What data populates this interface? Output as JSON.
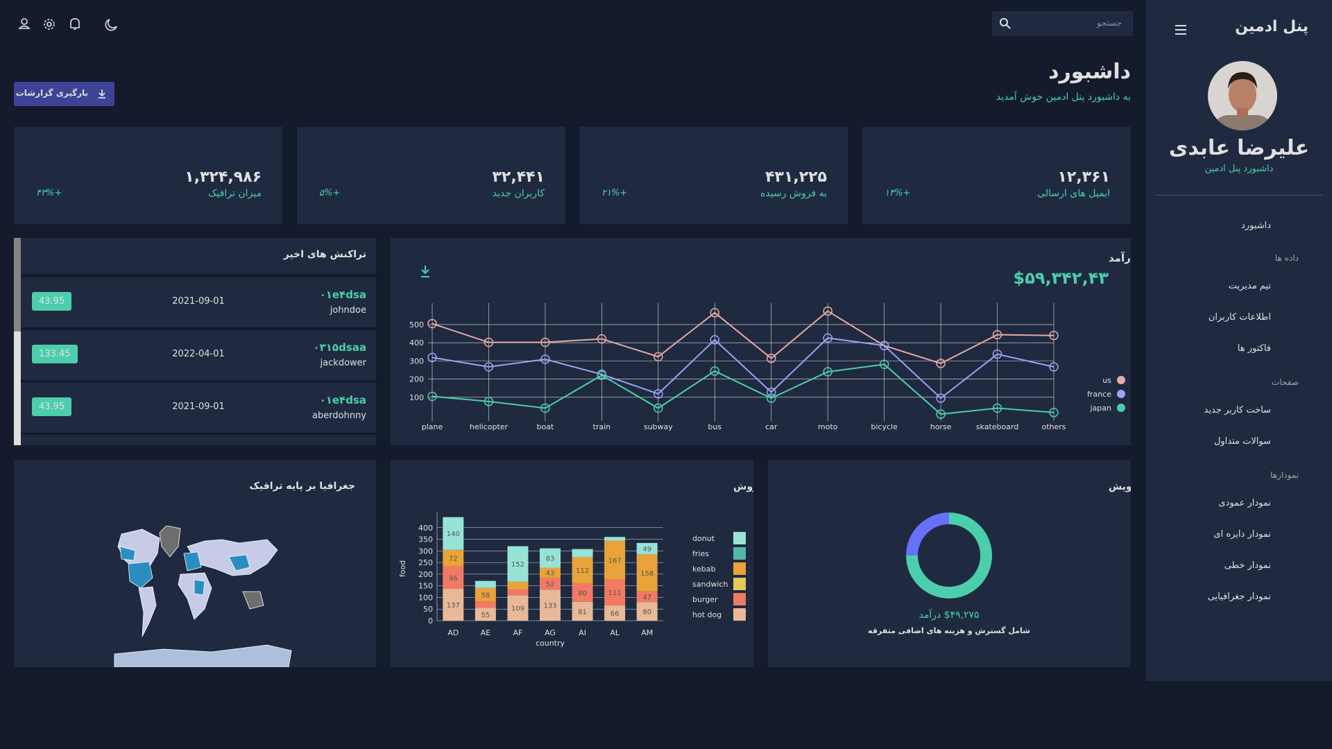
{
  "sidebar": {
    "title": "پنل ادمین",
    "user_name": "علیرضا عابدی",
    "user_role": "داشبورد پنل ادمین",
    "menu_top": "داشبورد",
    "menu_groups": [
      {
        "heading": "داده ها",
        "items": [
          "تیم مدیریت",
          "اطلاعات کاربران",
          "فاکتور ها"
        ]
      },
      {
        "heading": "صفحات",
        "items": [
          "ساخت کاربر جدید",
          "سوالات متداول"
        ]
      },
      {
        "heading": "نمودارها",
        "items": [
          "نمودار عمودی",
          "نمودار دایره ای",
          "نمودار خطی",
          "نمودار جغرافیایی"
        ]
      }
    ]
  },
  "header": {
    "search_placeholder": "جستجو",
    "title": "داشبورد",
    "subtitle": "به داشبورد پنل ادمین خوش آمدید",
    "download_button": "بارگیری گزارشات"
  },
  "stats": [
    {
      "value": "۱۲,۳۶۱",
      "label": "ایمیل های ارسالی",
      "change": "+۱۴%"
    },
    {
      "value": "۴۳۱,۲۲۵",
      "label": "به فروش رسیده",
      "change": "+۲۱%"
    },
    {
      "value": "۳۲,۴۴۱",
      "label": "کاربران جدید",
      "change": "+۵%"
    },
    {
      "value": "۱,۳۲۴,۹۸۶",
      "label": "میزان ترافیک",
      "change": "+۴۳%"
    }
  ],
  "transactions": {
    "title": "تراکنش های اخیر",
    "items": [
      {
        "id": "۰۱e۴dsa",
        "user": "johndoe",
        "date": "2021-09-01",
        "cost": "43.95"
      },
      {
        "id": "۰۳۱۵dsaa",
        "user": "jackdower",
        "date": "2022-04-01",
        "cost": "133.45"
      },
      {
        "id": "۰۱e۴dsa",
        "user": "aberdohnny",
        "date": "2021-09-01",
        "cost": "43.95"
      }
    ]
  },
  "map": {
    "title": "جغرافیا بر پایه ترافیک"
  },
  "chart_data": [
    {
      "type": "line",
      "title": "درآمد",
      "subtitle": "$۵۹,۳۴۲,۴۳",
      "categories": [
        "plane",
        "helicopter",
        "boat",
        "train",
        "subway",
        "bus",
        "car",
        "moto",
        "bicycle",
        "horse",
        "skateboard",
        "others"
      ],
      "series": [
        {
          "name": "us",
          "color": "#e8aaa4",
          "values": [
            505,
            402,
            402,
            421,
            323,
            565,
            314,
            574,
            384,
            286,
            444,
            440
          ]
        },
        {
          "name": "france",
          "color": "#9fa2f5",
          "values": [
            319,
            267,
            309,
            226,
            119,
            416,
            128,
            426,
            384,
            95,
            337,
            267
          ]
        },
        {
          "name": "japan",
          "color": "#4cceac",
          "values": [
            105,
            77,
            40,
            221,
            40,
            244,
            95,
            240,
            281,
            7,
            40,
            16
          ]
        }
      ],
      "ylim": [
        0,
        580
      ],
      "yticks": [
        100,
        200,
        300,
        400,
        500
      ],
      "grid": true,
      "legend": "right"
    },
    {
      "type": "bar",
      "stacked": true,
      "title": "میزان فروش",
      "xlabel": "country",
      "ylabel": "food",
      "categories": [
        "AD",
        "AE",
        "AF",
        "AG",
        "AI",
        "AL",
        "AM"
      ],
      "series": [
        {
          "name": "hot dog",
          "color": "#e8b898",
          "values": [
            137,
            55,
            109,
            133,
            81,
            66,
            80
          ]
        },
        {
          "name": "burger",
          "color": "#f07a64",
          "values": [
            96,
            28,
            25,
            52,
            80,
            111,
            47
          ]
        },
        {
          "name": "sandwich",
          "color": "#e2c95a",
          "values": [
            0,
            0,
            0,
            0,
            0,
            0,
            0
          ]
        },
        {
          "name": "kebab",
          "color": "#e8a33a",
          "values": [
            72,
            58,
            34,
            43,
            112,
            167,
            158
          ]
        },
        {
          "name": "fries",
          "color": "#52b8a8",
          "values": [
            0,
            0,
            0,
            0,
            0,
            0,
            0
          ]
        },
        {
          "name": "donut",
          "color": "#97e3d5",
          "values": [
            140,
            30,
            152,
            83,
            35,
            16,
            49
          ]
        }
      ],
      "ylim": [
        0,
        450
      ],
      "yticks": [
        0,
        50,
        100,
        150,
        200,
        250,
        300,
        350,
        400
      ],
      "grid": true,
      "legend": "right"
    },
    {
      "type": "pie",
      "title": "پویش",
      "values": [
        75,
        25
      ],
      "colors": [
        "#4cceac",
        "#6870fa"
      ],
      "annotations": [
        "$۴۹,۲۷۵ درآمد",
        "شامل گسترش و هزینه های اضافی متفرقه"
      ]
    }
  ]
}
